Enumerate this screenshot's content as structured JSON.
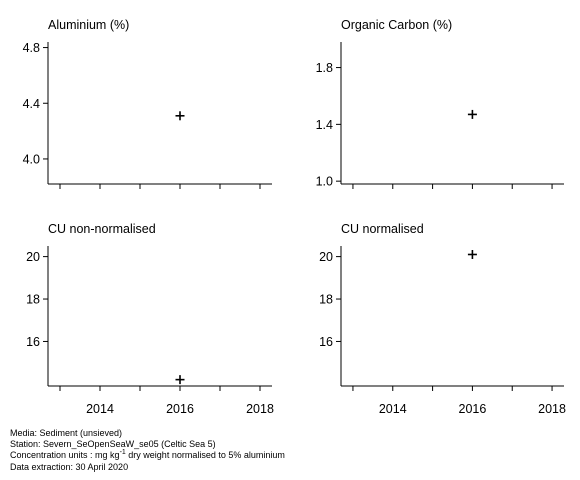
{
  "chart_data": [
    {
      "type": "scatter",
      "title": "Aluminium (%)",
      "x": [
        2016
      ],
      "y": [
        4.31
      ],
      "xlim": [
        2012.7,
        2018.3
      ],
      "ylim": [
        3.82,
        4.84
      ],
      "yticks": [
        "4.0",
        "4.4",
        "4.8"
      ],
      "xticks": []
    },
    {
      "type": "scatter",
      "title": "Organic Carbon (%)",
      "x": [
        2016
      ],
      "y": [
        1.47
      ],
      "xlim": [
        2012.7,
        2018.3
      ],
      "ylim": [
        0.98,
        1.98
      ],
      "yticks": [
        "1.0",
        "1.4",
        "1.8"
      ],
      "xticks": []
    },
    {
      "type": "scatter",
      "title": "CU non-normalised",
      "x": [
        2016
      ],
      "y": [
        14.2
      ],
      "xlim": [
        2012.7,
        2018.3
      ],
      "ylim": [
        13.9,
        20.5
      ],
      "yticks": [
        "16",
        "18",
        "20"
      ],
      "xticks": [
        "2014",
        "2016",
        "2018"
      ]
    },
    {
      "type": "scatter",
      "title": "CU normalised",
      "x": [
        2016
      ],
      "y": [
        20.1
      ],
      "xlim": [
        2012.7,
        2018.3
      ],
      "ylim": [
        13.9,
        20.5
      ],
      "yticks": [
        "16",
        "18",
        "20"
      ],
      "xticks": [
        "2014",
        "2016",
        "2018"
      ]
    }
  ],
  "footer": {
    "media": "Media: Sediment (unsieved)",
    "station": "Station: Severn_SeOpenSeaW_se05 (Celtic Sea 5)",
    "units_prefix": "Concentration units : mg kg",
    "units_sup": "-1",
    "units_suffix": " dry weight normalised to 5% aluminium",
    "extraction": "Data extraction: 30 April 2020"
  }
}
